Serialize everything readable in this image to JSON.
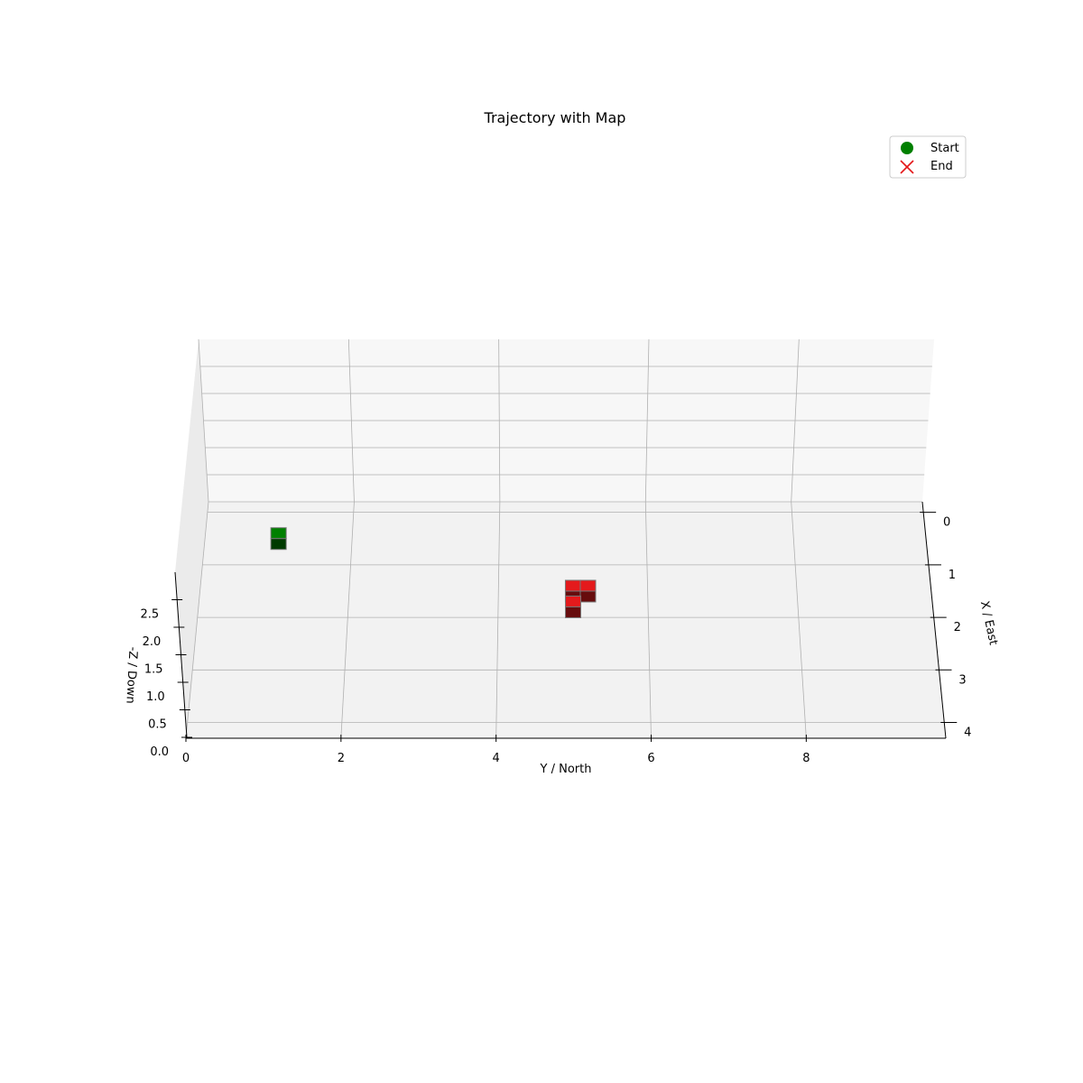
{
  "chart_data": {
    "type": "scatter",
    "projection": "3d",
    "title": "Trajectory with Map",
    "xlabel": "X / East",
    "ylabel": "Y / North",
    "zlabel": "-Z / Down",
    "x_ticks": [
      "0",
      "1",
      "2",
      "3",
      "4"
    ],
    "y_ticks": [
      "0",
      "2",
      "4",
      "6",
      "8"
    ],
    "z_ticks": [
      "0.0",
      "0.5",
      "1.0",
      "1.5",
      "2.0",
      "2.5"
    ],
    "xlim": [
      -0.2,
      4.3
    ],
    "ylim": [
      0,
      9.8
    ],
    "zlim": [
      0,
      3.0
    ],
    "grid": true,
    "legend": {
      "position": "upper-right",
      "entries": [
        {
          "label": "Start",
          "marker": "circle",
          "color": "#008000"
        },
        {
          "label": "End",
          "marker": "x",
          "color": "#e41a1c"
        }
      ]
    },
    "series": [
      {
        "name": "Start",
        "marker": "circle",
        "color": "#008000",
        "points": []
      },
      {
        "name": "End",
        "marker": "x",
        "color": "#e41a1c",
        "points": []
      }
    ],
    "voxels": [
      {
        "x": 0.5,
        "y": 1.0,
        "z": 0.0,
        "color": "#008000"
      },
      {
        "x": 1.5,
        "y": 5.0,
        "z": 0.0,
        "color": "#e41a1c"
      },
      {
        "x": 1.5,
        "y": 5.2,
        "z": 0.0,
        "color": "#e41a1c"
      },
      {
        "x": 1.8,
        "y": 5.0,
        "z": 0.0,
        "color": "#e41a1c"
      }
    ]
  }
}
